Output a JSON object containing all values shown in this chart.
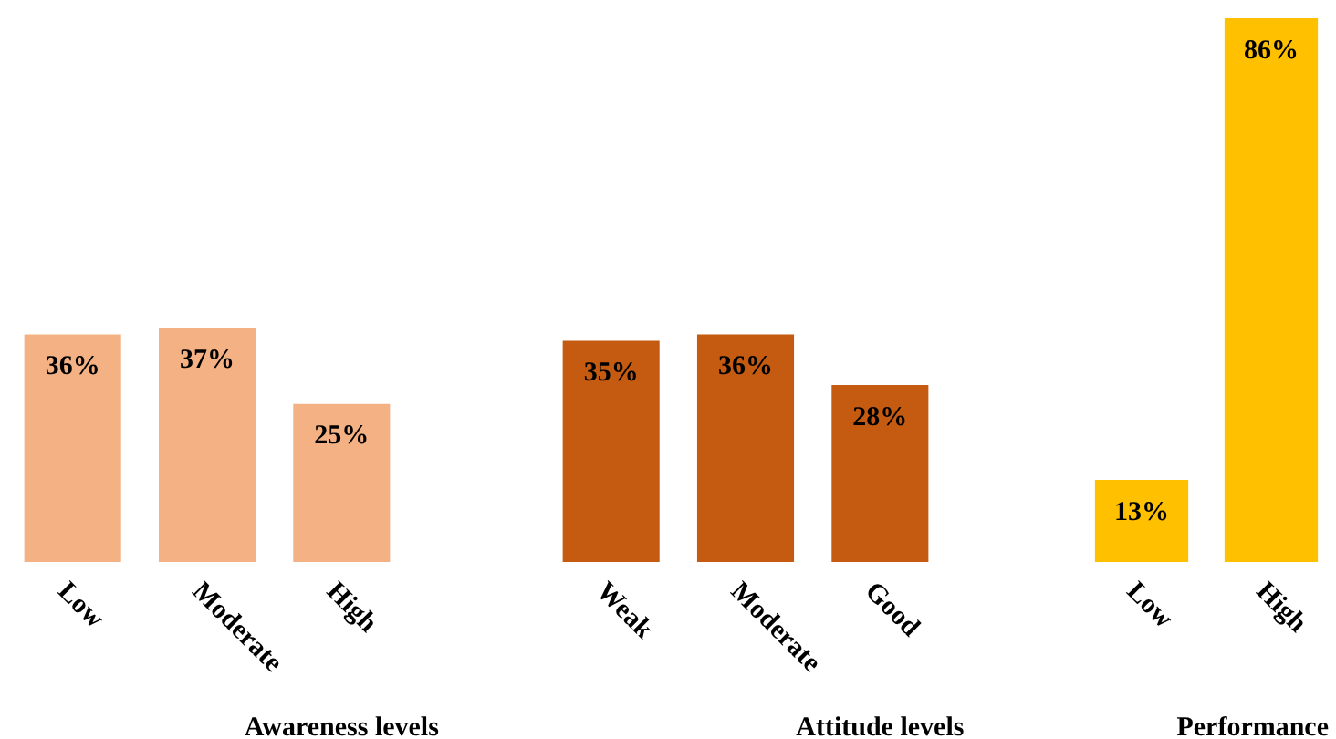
{
  "chart_data": [
    {
      "type": "bar",
      "xlabel": "Awareness levels",
      "categories": [
        "Low",
        "Moderate",
        "High"
      ],
      "values": [
        36,
        37,
        25
      ],
      "value_labels": [
        "36%",
        "37%",
        "25%"
      ],
      "color": "#f4b183",
      "tick_labels": "x"
    },
    {
      "type": "bar",
      "xlabel": "Attitude levels",
      "categories": [
        "Weak",
        "Moderate",
        "Good"
      ],
      "values": [
        35,
        36,
        28
      ],
      "value_labels": [
        "35%",
        "36%",
        "28%"
      ],
      "color": "#c55a11",
      "tick_labels": "x"
    },
    {
      "type": "bar",
      "xlabel": "Performance",
      "categories": [
        "Low",
        "High"
      ],
      "values": [
        13,
        86
      ],
      "value_labels": [
        "13%",
        "86%"
      ],
      "color": "#ffc000",
      "tick_labels": "x"
    }
  ]
}
